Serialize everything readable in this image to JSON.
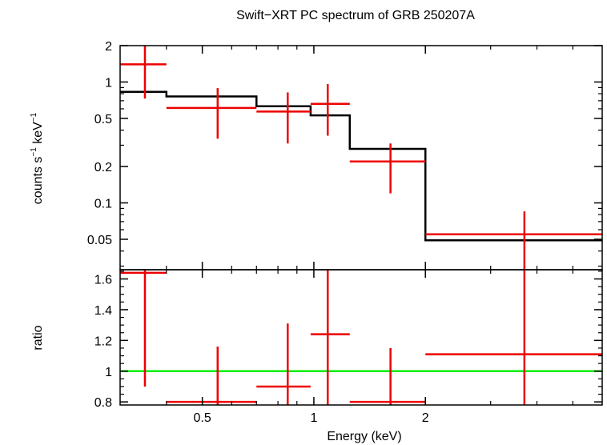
{
  "chart_data": {
    "title": "Swift−XRT PC spectrum of GRB 250207A",
    "xlabel": "Energy (keV)",
    "xscale": "log",
    "xlim": [
      0.3,
      6.0
    ],
    "xticks": [
      {
        "v": 0.5,
        "label": "0.5"
      },
      {
        "v": 1,
        "label": "1"
      },
      {
        "v": 2,
        "label": "2"
      }
    ],
    "top": {
      "type": "step+errorbars",
      "yscale": "log",
      "ylabel_main": "counts s",
      "ylabel_sup1": "−1",
      "ylabel_mid": " keV",
      "ylabel_sup2": "−1",
      "ylim": [
        0.028,
        2.0
      ],
      "yticks": [
        {
          "v": 2,
          "label": "2"
        },
        {
          "v": 1,
          "label": "1"
        },
        {
          "v": 0.5,
          "label": "0.5"
        },
        {
          "v": 0.2,
          "label": "0.2"
        },
        {
          "v": 0.1,
          "label": "0.1"
        },
        {
          "v": 0.05,
          "label": "0.05"
        }
      ],
      "data_color": "#ee0000",
      "model_color": "#000000",
      "data": [
        {
          "xlo": 0.3,
          "xhi": 0.4,
          "x": 0.35,
          "y": 1.4,
          "ylo": 0.73,
          "yhi": 2.0
        },
        {
          "xlo": 0.4,
          "xhi": 0.7,
          "x": 0.55,
          "y": 0.61,
          "ylo": 0.34,
          "yhi": 0.89
        },
        {
          "xlo": 0.7,
          "xhi": 0.98,
          "x": 0.85,
          "y": 0.57,
          "ylo": 0.31,
          "yhi": 0.82
        },
        {
          "xlo": 0.98,
          "xhi": 1.25,
          "x": 1.09,
          "y": 0.66,
          "ylo": 0.36,
          "yhi": 0.96
        },
        {
          "xlo": 1.25,
          "xhi": 2.0,
          "x": 1.61,
          "y": 0.22,
          "ylo": 0.12,
          "yhi": 0.31
        },
        {
          "xlo": 2.0,
          "xhi": 6.0,
          "x": 3.7,
          "y": 0.055,
          "ylo": 0.028,
          "yhi": 0.085
        }
      ],
      "model": [
        {
          "xlo": 0.3,
          "xhi": 0.4,
          "y": 0.83
        },
        {
          "xlo": 0.4,
          "xhi": 0.7,
          "y": 0.76
        },
        {
          "xlo": 0.7,
          "xhi": 0.98,
          "y": 0.63
        },
        {
          "xlo": 0.98,
          "xhi": 1.25,
          "y": 0.53
        },
        {
          "xlo": 1.25,
          "xhi": 2.0,
          "y": 0.28
        },
        {
          "xlo": 2.0,
          "xhi": 6.0,
          "y": 0.049
        }
      ]
    },
    "bottom": {
      "type": "errorbars",
      "ylabel": "ratio",
      "yscale": "linear",
      "ylim": [
        0.78,
        1.66
      ],
      "yticks": [
        {
          "v": 1.6,
          "label": "1.6"
        },
        {
          "v": 1.4,
          "label": "1.4"
        },
        {
          "v": 1.2,
          "label": "1.2"
        },
        {
          "v": 1,
          "label": "1"
        },
        {
          "v": 0.8,
          "label": "0.8"
        }
      ],
      "reference_line": 1,
      "reference_color": "#00ee00",
      "data_color": "#ee0000",
      "data": [
        {
          "xlo": 0.3,
          "xhi": 0.4,
          "x": 0.35,
          "y": 1.64,
          "ylo": 0.9,
          "yhi": 1.66
        },
        {
          "xlo": 0.4,
          "xhi": 0.7,
          "x": 0.55,
          "y": 0.8,
          "ylo": 0.78,
          "yhi": 1.16
        },
        {
          "xlo": 0.7,
          "xhi": 0.98,
          "x": 0.85,
          "y": 0.9,
          "ylo": 0.78,
          "yhi": 1.31
        },
        {
          "xlo": 0.98,
          "xhi": 1.25,
          "x": 1.09,
          "y": 1.24,
          "ylo": 0.78,
          "yhi": 1.66
        },
        {
          "xlo": 1.25,
          "xhi": 2.0,
          "x": 1.61,
          "y": 0.8,
          "ylo": 0.78,
          "yhi": 1.15
        },
        {
          "xlo": 2.0,
          "xhi": 6.0,
          "x": 3.7,
          "y": 1.11,
          "ylo": 0.78,
          "yhi": 1.66
        }
      ]
    }
  }
}
